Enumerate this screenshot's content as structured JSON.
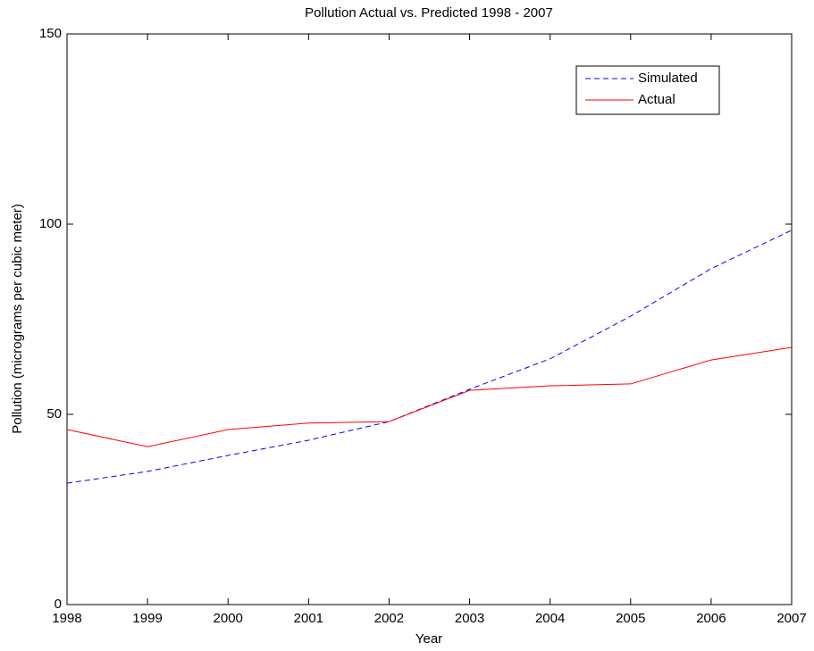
{
  "chart_data": {
    "type": "line",
    "title": "Pollution Actual vs. Predicted 1998 - 2007",
    "x_label": "Year",
    "y_label": "Pollution (micrograms per cubic meter)",
    "x": [
      1998,
      1999,
      2000,
      2001,
      2002,
      2003,
      2004,
      2005,
      2006,
      2007
    ],
    "series": [
      {
        "name": "Simulated",
        "color": "#0000ff",
        "linestyle": "dashed",
        "values": [
          31.9,
          35.0,
          39.2,
          43.2,
          48.1,
          56.6,
          64.6,
          75.8,
          88.3,
          98.4
        ]
      },
      {
        "name": "Actual",
        "color": "#ff0000",
        "linestyle": "solid",
        "values": [
          46.0,
          41.5,
          46.0,
          47.7,
          48.1,
          56.3,
          57.5,
          58.0,
          64.3,
          67.6
        ]
      }
    ],
    "xlim": [
      1998,
      2007
    ],
    "xticks": [
      1998,
      1999,
      2000,
      2001,
      2002,
      2003,
      2004,
      2005,
      2006,
      2007
    ],
    "ylim": [
      0,
      150
    ],
    "yticks": [
      0,
      50,
      100,
      150
    ],
    "grid": false,
    "legend": "northeast"
  }
}
